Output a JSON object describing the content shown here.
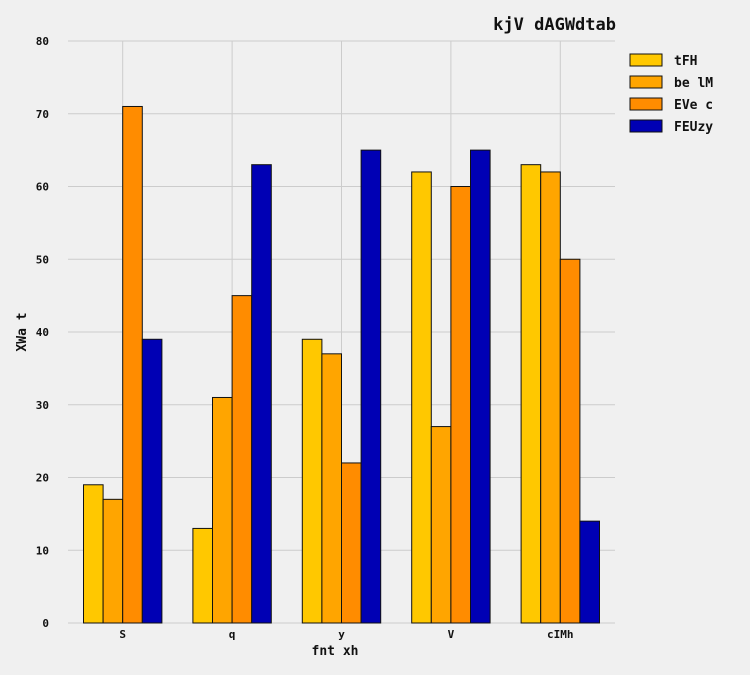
{
  "chart_data": {
    "type": "bar",
    "title": "kjV dAGWdtab",
    "xlabel": "fnt xh",
    "ylabel": "XWa t",
    "categories": [
      "S",
      "q",
      "y",
      "V",
      "cIMh"
    ],
    "ylim": [
      0,
      80
    ],
    "yticks": [
      0,
      10,
      20,
      30,
      40,
      50,
      60,
      70,
      80
    ],
    "grid": true,
    "legend_position": "top-right",
    "series": [
      {
        "name": "tFH",
        "color": "#ffc800",
        "values": [
          19,
          13,
          39,
          62,
          63
        ]
      },
      {
        "name": "be lM",
        "color": "#ffa500",
        "values": [
          17,
          31,
          37,
          27,
          62
        ]
      },
      {
        "name": "EVe c",
        "color": "#ff8c00",
        "values": [
          71,
          45,
          22,
          60,
          50
        ]
      },
      {
        "name": "FEUzy",
        "color": "#0000b4",
        "values": [
          39,
          63,
          65,
          65,
          14
        ]
      }
    ]
  }
}
